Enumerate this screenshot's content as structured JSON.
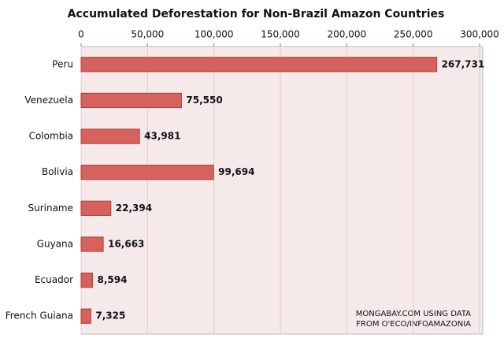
{
  "chart_data": {
    "type": "barh",
    "title": "Accumulated Deforestation for Non-Brazil Amazon Countries",
    "categories": [
      "Peru",
      "Venezuela",
      "Colombia",
      "Bolivia",
      "Suriname",
      "Guyana",
      "Ecuador",
      "French Guiana"
    ],
    "values": [
      267731,
      75550,
      43981,
      99694,
      22394,
      16663,
      8594,
      7325
    ],
    "value_labels": [
      "267,731",
      "75,550",
      "43,981",
      "99,694",
      "22,394",
      "16,663",
      "8,594",
      "7,325"
    ],
    "color": "#d6625d",
    "xlim": [
      0,
      300000
    ],
    "xticks": [
      0,
      {
        "value": 50000,
        "label": "50,000"
      },
      {
        "value": 100000,
        "label": "100,000"
      },
      {
        "value": 150000,
        "label": "150,000"
      },
      {
        "value": 200000,
        "label": "200,000"
      },
      {
        "value": 250000,
        "label": "250,000"
      },
      {
        "value": 300000,
        "label": "300,000"
      }
    ],
    "grid": true,
    "annotation": [
      "MONGABAY.COM USING DATA",
      "FROM O'ECO/INFOAMAZONIA"
    ]
  }
}
